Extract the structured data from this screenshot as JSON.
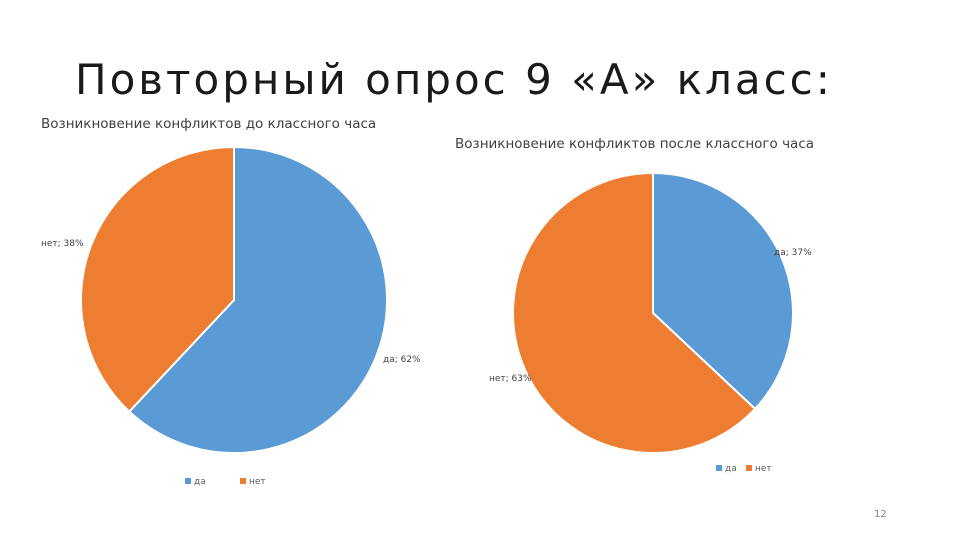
{
  "slide": {
    "title": "Повторный опрос 9 «А» класс:",
    "page_number": "12"
  },
  "colors": {
    "da": "#5b9bd5",
    "net": "#ed7d31"
  },
  "chart_data": [
    {
      "type": "pie",
      "title": "Возникновение конфликтов до классного часа",
      "categories": [
        "да",
        "нет"
      ],
      "values": [
        62,
        38
      ],
      "data_labels": [
        "да; 62%",
        "нет; 38%"
      ],
      "legend": [
        "да",
        "нет"
      ],
      "legend_position": "bottom"
    },
    {
      "type": "pie",
      "title": "Возникновение конфликтов после классного часа",
      "categories": [
        "да",
        "нет"
      ],
      "values": [
        37,
        63
      ],
      "data_labels": [
        "да; 37%",
        "нет; 63%"
      ],
      "legend": [
        "да",
        "нет"
      ],
      "legend_position": "bottom"
    }
  ]
}
